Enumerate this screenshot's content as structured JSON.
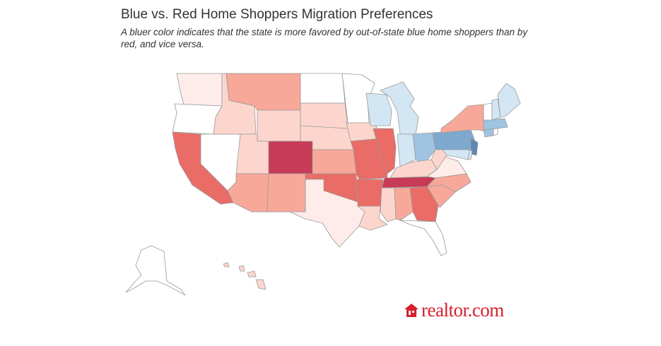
{
  "title": "Blue vs. Red Home Shoppers Migration Preferences",
  "subtitle": "A bluer color indicates that the state is more favored by out-of-state blue home shoppers than by red, and vice versa.",
  "logo": {
    "text": "realtor.com",
    "icon": "house-icon",
    "color": "#d6202e"
  },
  "color_scale": {
    "strong_red": "#c73b57",
    "red": "#ea6c66",
    "mid_red": "#f7a899",
    "light_red": "#fcd6cd",
    "faint_red": "#fdecea",
    "neutral": "#ffffff",
    "light_blue": "#d3e6f4",
    "mid_blue": "#9fc3e0",
    "blue": "#7fa8cf",
    "strong_blue": "#5d87b6"
  }
}
